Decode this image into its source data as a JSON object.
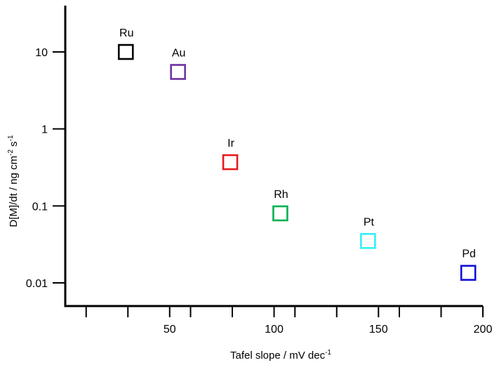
{
  "chart_data": {
    "type": "scatter",
    "xlabel": "Tafel slope / mV dec",
    "xlabel_sup": "-1",
    "ylabel_parts": [
      "D[M]/dt / ng cm",
      "-2",
      " s",
      "-1"
    ],
    "x_scale": "linear",
    "y_scale": "log",
    "xlim": [
      0,
      200
    ],
    "ylim": [
      0.005,
      40
    ],
    "x_ticks": [
      50,
      100,
      150,
      200
    ],
    "x_tick_labels": [
      "50",
      "100",
      "150",
      "200"
    ],
    "x_minor_ticks": [
      10,
      30,
      60,
      80,
      110,
      130,
      160,
      180
    ],
    "y_ticks": [
      0.01,
      0.1,
      1,
      10
    ],
    "y_tick_labels": [
      "0.01",
      "0.1",
      "1",
      "10"
    ],
    "grid": false,
    "marker": "open-square",
    "points": [
      {
        "label": "Ru",
        "x": 29,
        "y": 10,
        "color": "#000000"
      },
      {
        "label": "Au",
        "x": 54,
        "y": 5.5,
        "color": "#7030a0"
      },
      {
        "label": "Ir",
        "x": 79,
        "y": 0.37,
        "color": "#e8191b"
      },
      {
        "label": "Rh",
        "x": 103,
        "y": 0.08,
        "color": "#00b050"
      },
      {
        "label": "Pt",
        "x": 145,
        "y": 0.035,
        "color": "#33f0f4"
      },
      {
        "label": "Pd",
        "x": 193,
        "y": 0.0135,
        "color": "#1010d8"
      }
    ]
  }
}
